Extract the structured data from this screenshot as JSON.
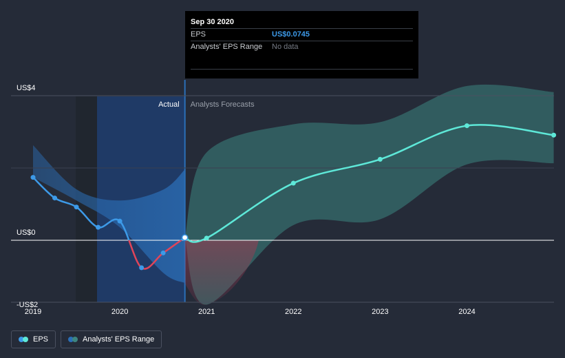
{
  "tooltip": {
    "date": "Sep 30 2020",
    "rows": [
      {
        "label": "EPS",
        "value": "US$0.0745"
      },
      {
        "label": "Analysts' EPS Range",
        "value": "No data"
      }
    ]
  },
  "zones": {
    "actual_label": "Actual",
    "forecast_label": "Analysts Forecasts"
  },
  "legend": {
    "eps_label": "EPS",
    "range_label": "Analysts' EPS Range"
  },
  "colors": {
    "background": "#252b38",
    "eps_positive": "#3d9ae8",
    "eps_negative": "#e0455a",
    "forecast_line": "#5ee8d8",
    "forecast_band": "#3d8580",
    "actual_highlight": "#1f3a66"
  },
  "chart_data": {
    "type": "line",
    "x_unit": "year",
    "ylim": [
      -2,
      4
    ],
    "y_ticks": [
      {
        "value": 4,
        "label": "US$4"
      },
      {
        "value": 0,
        "label": "US$0"
      },
      {
        "value": -2,
        "label": "-US$2"
      }
    ],
    "x_ticks": [
      {
        "value": 2019,
        "label": "2019"
      },
      {
        "value": 2020,
        "label": "2020"
      },
      {
        "value": 2021,
        "label": "2021"
      },
      {
        "value": 2022,
        "label": "2022"
      },
      {
        "value": 2023,
        "label": "2023"
      },
      {
        "value": 2024,
        "label": "2024"
      }
    ],
    "gridlines": [
      2
    ],
    "xlim": [
      2018.75,
      2025
    ],
    "current_x": 2020.75,
    "series": [
      {
        "name": "EPS",
        "role": "actual",
        "points": [
          {
            "x": 2019.0,
            "y": 1.74
          },
          {
            "x": 2019.25,
            "y": 1.17
          },
          {
            "x": 2019.5,
            "y": 0.92
          },
          {
            "x": 2019.75,
            "y": 0.36
          },
          {
            "x": 2020.0,
            "y": 0.53
          },
          {
            "x": 2020.25,
            "y": -0.76
          },
          {
            "x": 2020.5,
            "y": -0.35
          },
          {
            "x": 2020.75,
            "y": 0.0745
          }
        ]
      },
      {
        "name": "EPS",
        "role": "forecast",
        "points": [
          {
            "x": 2020.75,
            "y": 0.0745
          },
          {
            "x": 2021.0,
            "y": 0.06
          },
          {
            "x": 2022.0,
            "y": 1.58
          },
          {
            "x": 2023.0,
            "y": 2.24
          },
          {
            "x": 2024.0,
            "y": 3.17
          },
          {
            "x": 2025.0,
            "y": 2.91
          }
        ]
      }
    ],
    "range": {
      "name": "Analysts' EPS Range",
      "upper": [
        {
          "x": 2021.0,
          "y": 2.43
        },
        {
          "x": 2022.0,
          "y": 3.21
        },
        {
          "x": 2023.0,
          "y": 3.27
        },
        {
          "x": 2024.0,
          "y": 4.27
        },
        {
          "x": 2025.0,
          "y": 4.1
        }
      ],
      "lower": [
        {
          "x": 2021.0,
          "y": -1.78
        },
        {
          "x": 2022.0,
          "y": 0.42
        },
        {
          "x": 2023.0,
          "y": 0.58
        },
        {
          "x": 2024.0,
          "y": 2.1
        },
        {
          "x": 2025.0,
          "y": 2.13
        }
      ]
    },
    "past_band": {
      "upper": [
        {
          "x": 2019.0,
          "y": 2.63
        },
        {
          "x": 2019.5,
          "y": 1.41
        },
        {
          "x": 2020.0,
          "y": 1.1
        },
        {
          "x": 2020.5,
          "y": 1.4
        },
        {
          "x": 2020.75,
          "y": 1.96
        }
      ],
      "lower": [
        {
          "x": 2019.0,
          "y": 1.74
        },
        {
          "x": 2019.5,
          "y": 1.1
        },
        {
          "x": 2020.0,
          "y": 0.36
        },
        {
          "x": 2020.5,
          "y": -0.9
        },
        {
          "x": 2020.75,
          "y": -1.18
        }
      ]
    }
  }
}
